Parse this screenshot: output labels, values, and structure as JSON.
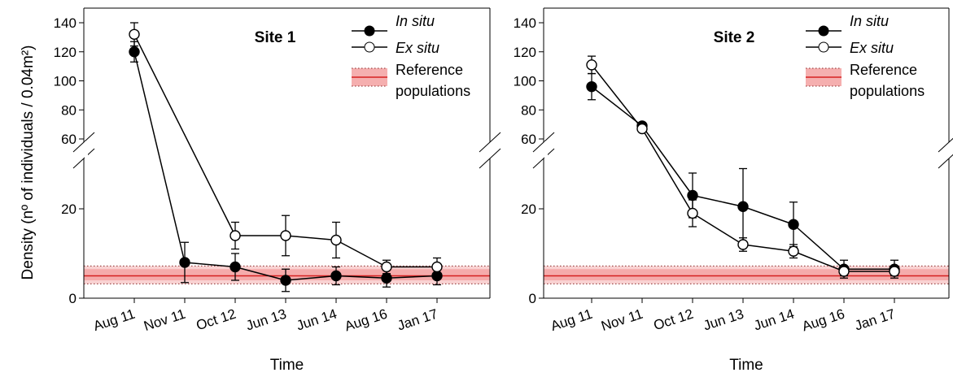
{
  "colors": {
    "band_fill": "#f4a6a6",
    "band_line": "#d62020",
    "band_dots": "#8a2a2a",
    "in_situ": "#000000",
    "ex_situ": "#ffffff"
  },
  "chart_data": [
    {
      "type": "line",
      "title": "Site 1",
      "ylabel": "Density (nº of individuals / 0.04m²)",
      "xlabel": "Time",
      "categories": [
        "Aug 11",
        "Nov 11",
        "Oct 12",
        "Jun 13",
        "Jun 14",
        "Aug 16",
        "Jan 17"
      ],
      "y_axis_break": {
        "lower_range": [
          0,
          30
        ],
        "upper_range": [
          60,
          150
        ]
      },
      "y_ticks_lower": [
        0,
        20
      ],
      "y_ticks_upper": [
        60,
        80,
        100,
        120,
        140
      ],
      "grid": false,
      "legend_position": "top-right",
      "series": [
        {
          "name": "In situ",
          "marker": "filled-circle",
          "values": [
            120,
            8,
            7,
            4,
            5,
            4.5,
            5
          ],
          "err": [
            7,
            4.5,
            3,
            2.5,
            2,
            2,
            2
          ]
        },
        {
          "name": "Ex situ",
          "marker": "open-circle",
          "values": [
            132,
            null,
            14,
            14,
            13,
            7,
            7
          ],
          "err": [
            8,
            null,
            3,
            4.5,
            4,
            1.5,
            2
          ]
        }
      ],
      "reference_band": {
        "label": "Reference populations",
        "mean": 5,
        "inner": [
          4,
          6.5
        ],
        "outer": [
          3.2,
          7.2
        ]
      }
    },
    {
      "type": "line",
      "title": "Site 2",
      "ylabel": "",
      "xlabel": "Time",
      "categories": [
        "Aug 11",
        "Nov 11",
        "Oct 12",
        "Jun 13",
        "Jun 14",
        "Aug 16",
        "Jan 17"
      ],
      "y_axis_break": {
        "lower_range": [
          0,
          30
        ],
        "upper_range": [
          60,
          150
        ]
      },
      "y_ticks_lower": [
        0,
        20
      ],
      "y_ticks_upper": [
        60,
        80,
        100,
        120,
        140
      ],
      "grid": false,
      "legend_position": "top-right",
      "series": [
        {
          "name": "In situ",
          "marker": "filled-circle",
          "values": [
            96,
            69,
            23,
            20.5,
            16.5,
            6.5,
            6.5
          ],
          "err": [
            9,
            2,
            5,
            8.5,
            5,
            2,
            2
          ]
        },
        {
          "name": "Ex situ",
          "marker": "open-circle",
          "values": [
            111,
            67,
            19,
            12,
            10.5,
            6,
            6
          ],
          "err": [
            6,
            2,
            3,
            1.5,
            1.5,
            1,
            1
          ]
        }
      ],
      "reference_band": {
        "label": "Reference populations",
        "mean": 5,
        "inner": [
          4,
          6.5
        ],
        "outer": [
          3.2,
          7.2
        ]
      }
    }
  ],
  "legend": {
    "in_situ": "In situ",
    "ex_situ": "Ex situ",
    "reference_line1": "Reference",
    "reference_line2": "populations"
  }
}
